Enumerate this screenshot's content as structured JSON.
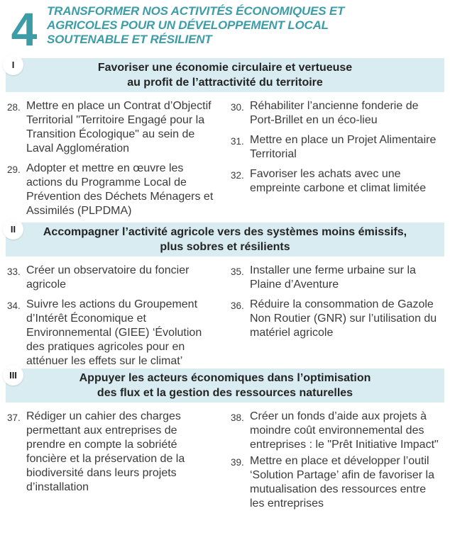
{
  "colors": {
    "accent_teal": "#3D9DA7",
    "band_background": "#D8ECF1",
    "body_text": "#3B3B3B"
  },
  "header": {
    "chapter_number": "4",
    "title_lines": [
      "TRANSFORMER NOS ACTIVITÉS ÉCONOMIQUES ET",
      "AGRICOLES POUR UN DÉVELOPPEMENT LOCAL",
      "SOUTENABLE ET RÉSILIENT"
    ]
  },
  "sections": [
    {
      "numeral": "I",
      "title_lines": [
        "Favoriser une économie circulaire et vertueuse",
        "au profit de l’attractivité du territoire"
      ],
      "left_items": [
        {
          "num": "28.",
          "text": "Mettre en place un Contrat d’Objectif Territorial \"Territoire Engagé pour la Transition Écologique\" au sein de Laval Agglomération"
        },
        {
          "num": "29.",
          "text": "Adopter et mettre en œuvre les actions du Programme Local de Prévention des Déchets Ménagers et Assimilés (PLPDMA)"
        }
      ],
      "right_items": [
        {
          "num": "30.",
          "text": "Réhabiliter l’ancienne fonderie de Port-Brillet en un éco-lieu"
        },
        {
          "num": "31.",
          "text": "Mettre en place un Projet Alimentaire Territorial"
        },
        {
          "num": "32.",
          "text": "Favoriser les achats avec une empreinte carbone et climat limitée"
        }
      ]
    },
    {
      "numeral": "II",
      "title_lines": [
        "Accompagner l’activité agricole vers des systèmes moins émissifs,",
        "plus sobres et résilients"
      ],
      "left_items": [
        {
          "num": "33.",
          "text": "Créer un observatoire du foncier agricole"
        },
        {
          "num": "34.",
          "text": "Suivre les actions du Groupement d’Intérêt Économique et Environnemental (GIEE) ‘Évolution des pratiques agricoles pour en atténuer les effets sur le climat’"
        }
      ],
      "right_items": [
        {
          "num": "35.",
          "text": "Installer une ferme urbaine sur la Plaine d’Aventure"
        },
        {
          "num": "36.",
          "text": "Réduire la consommation de Gazole Non Routier (GNR) sur l’utilisation du matériel agricole"
        }
      ]
    },
    {
      "numeral": "III",
      "title_lines": [
        "Appuyer les acteurs économiques dans l’optimisation",
        "des flux et la gestion des ressources naturelles"
      ],
      "left_items": [
        {
          "num": "37.",
          "text": "Rédiger un cahier des charges permettant aux entreprises de prendre en compte la sobriété foncière et la préservation de la biodiversité dans leurs projets d’installation"
        }
      ],
      "right_items": [
        {
          "num": "38.",
          "text": "Créer un fonds d’aide aux projets à moindre coût environnemental des entreprises : le \"Prêt Initiative Impact\""
        },
        {
          "num": "39.",
          "text": "Mettre en place et développer l’outil ‘Solution Partage’ afin de favoriser la mutualisation des ressources entre les entreprises"
        }
      ]
    }
  ]
}
